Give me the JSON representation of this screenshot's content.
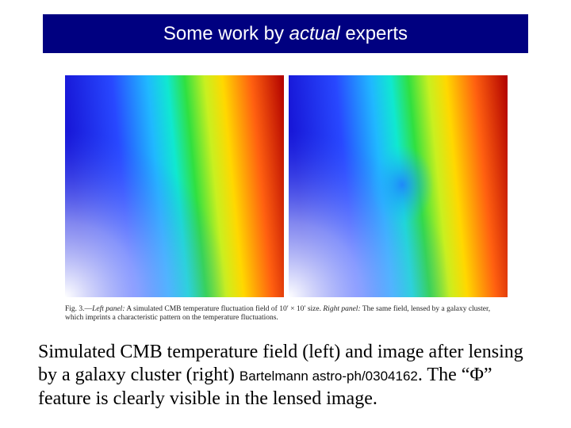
{
  "header": {
    "title_before": "Some work by ",
    "title_emphasis": "actual",
    "title_after": " experts"
  },
  "figure": {
    "caption_label": "Fig. 3.—",
    "left_heading": "Left panel:",
    "left_text": " A simulated CMB temperature fluctuation field of 10′ × 10′ size. ",
    "right_heading": "Right panel:",
    "right_text": " The same field, lensed by a galaxy cluster, which imprints a characteristic pattern on the temperature fluctuations."
  },
  "body": {
    "text_before": "Simulated CMB temperature field (left) and image after lensing by a galaxy cluster (right) ",
    "citation": "Bartelmann astro-ph/0304162",
    "text_after": ".  The “Φ” feature is clearly visible in the lensed image."
  }
}
